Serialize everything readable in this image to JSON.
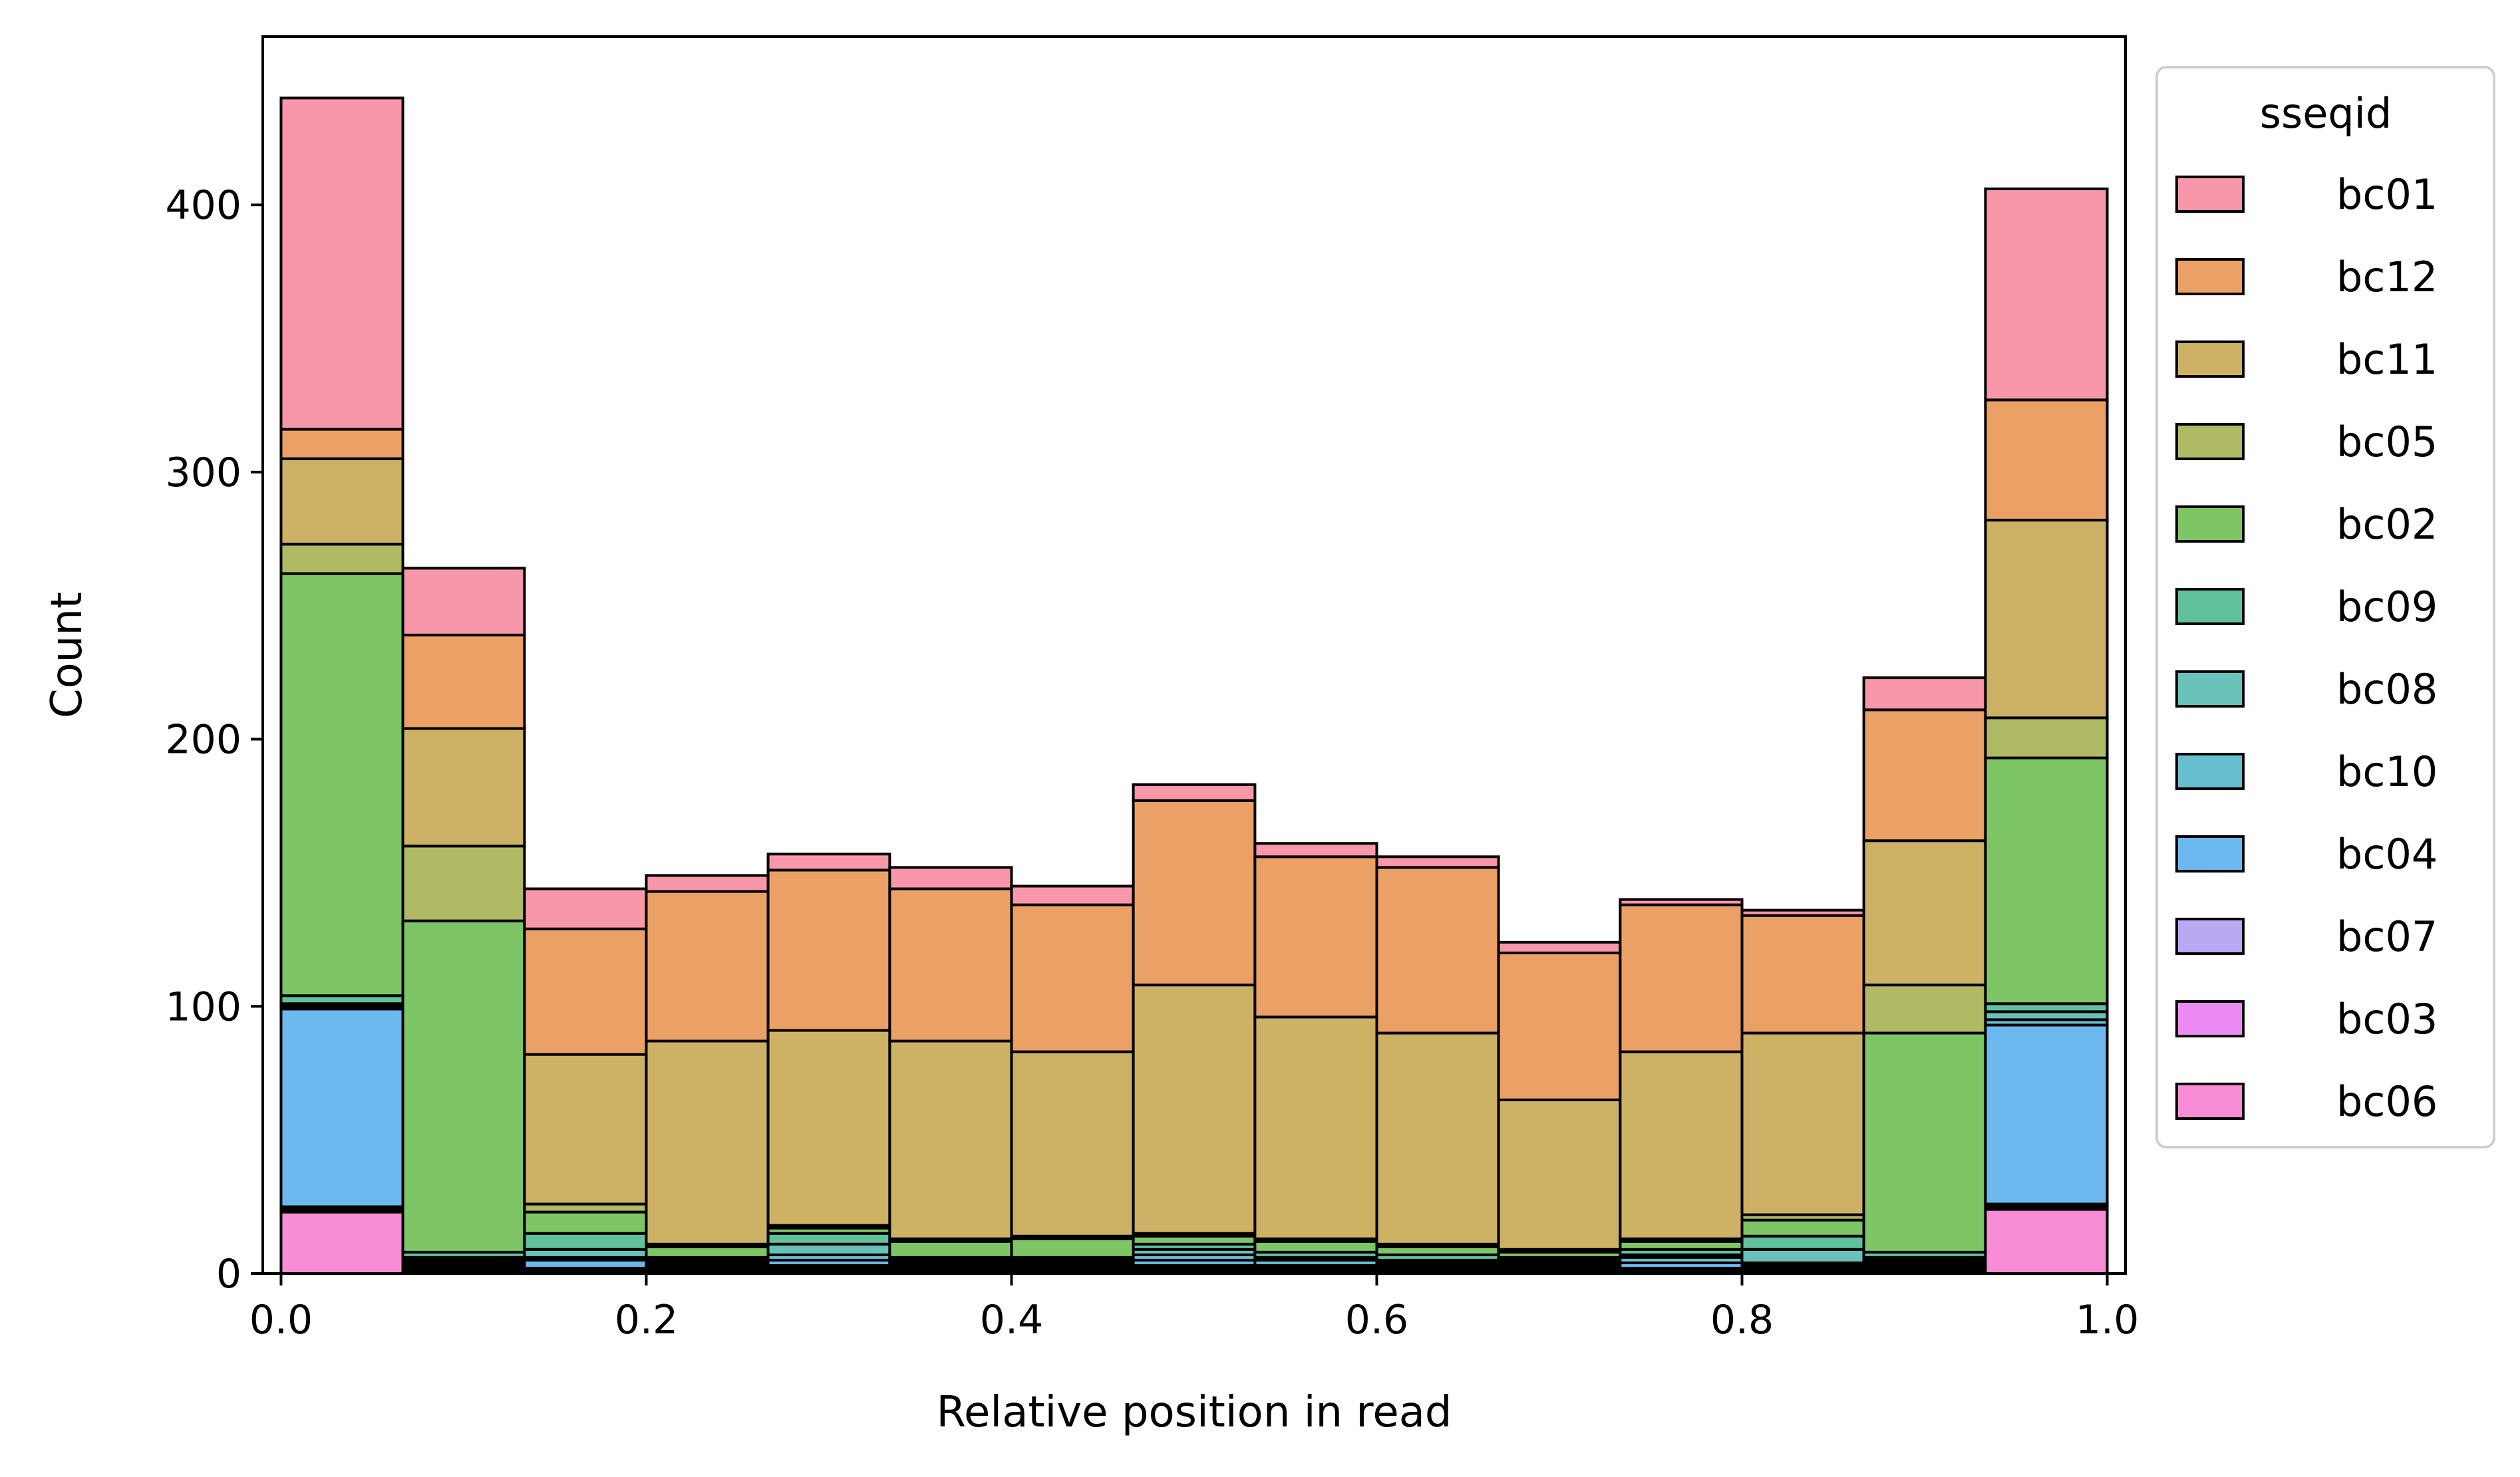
{
  "chart_data": {
    "type": "bar",
    "stacked": true,
    "title": "",
    "xlabel": "Relative position in read",
    "ylabel": "Count",
    "xlim": [
      -0.01,
      1.01
    ],
    "ylim": [
      0,
      463
    ],
    "xticks": [
      0.0,
      0.2,
      0.4,
      0.6,
      0.8,
      1.0
    ],
    "xtick_labels": [
      "0.0",
      "0.2",
      "0.4",
      "0.6",
      "0.8",
      "1.0"
    ],
    "yticks": [
      0,
      100,
      200,
      300,
      400
    ],
    "ytick_labels": [
      "0",
      "100",
      "200",
      "300",
      "400"
    ],
    "grid": false,
    "legend": {
      "title": "sseqid",
      "placement": "outside-right"
    },
    "bin_edges": [
      0.0,
      0.0667,
      0.1333,
      0.2,
      0.2667,
      0.3333,
      0.4,
      0.4667,
      0.5333,
      0.6,
      0.6667,
      0.7333,
      0.8,
      0.8667,
      0.9333,
      1.0
    ],
    "stack_order_bottom_to_top": [
      "bc06",
      "bc03",
      "bc07",
      "bc04",
      "bc10",
      "bc08",
      "bc09",
      "bc02",
      "bc05",
      "bc11",
      "bc12",
      "bc01"
    ],
    "series": [
      {
        "name": "bc01",
        "color": "#f897a9",
        "values": [
          124,
          25,
          15,
          6,
          6,
          8,
          7,
          6,
          5,
          4,
          4,
          2,
          2,
          12,
          79
        ]
      },
      {
        "name": "bc12",
        "color": "#eba165",
        "values": [
          11,
          35,
          47,
          56,
          60,
          57,
          55,
          69,
          60,
          62,
          55,
          55,
          44,
          49,
          45
        ]
      },
      {
        "name": "bc11",
        "color": "#cdb266",
        "values": [
          32,
          44,
          56,
          76,
          73,
          74,
          69,
          93,
          83,
          79,
          56,
          70,
          68,
          54,
          74
        ]
      },
      {
        "name": "bc05",
        "color": "#b0b964",
        "values": [
          11,
          28,
          3,
          1,
          1,
          1,
          1,
          1,
          1,
          1,
          1,
          1,
          2,
          18,
          15
        ]
      },
      {
        "name": "bc02",
        "color": "#7ec566",
        "values": [
          158,
          124,
          8,
          4,
          2,
          6,
          7,
          3,
          4,
          3,
          2,
          3,
          6,
          82,
          92
        ]
      },
      {
        "name": "bc09",
        "color": "#61c19c",
        "values": [
          3,
          2,
          6,
          1,
          4,
          1,
          1,
          2,
          2,
          2,
          1,
          2,
          5,
          2,
          3
        ]
      },
      {
        "name": "bc08",
        "color": "#68c2ba",
        "values": [
          1,
          1,
          3,
          1,
          4,
          1,
          1,
          2,
          1,
          1,
          1,
          1,
          5,
          1,
          3
        ]
      },
      {
        "name": "bc10",
        "color": "#68bfcf",
        "values": [
          1,
          1,
          1,
          1,
          2,
          1,
          1,
          2,
          2,
          1,
          1,
          2,
          1,
          1,
          2
        ]
      },
      {
        "name": "bc04",
        "color": "#6bb9ef",
        "values": [
          74,
          1,
          3,
          1,
          2,
          1,
          1,
          2,
          1,
          1,
          1,
          2,
          1,
          1,
          67
        ]
      },
      {
        "name": "bc07",
        "color": "#bba8f2",
        "values": [
          1,
          1,
          1,
          1,
          1,
          1,
          1,
          1,
          1,
          1,
          1,
          1,
          1,
          1,
          1
        ]
      },
      {
        "name": "bc03",
        "color": "#ec8cf3",
        "values": [
          1,
          1,
          1,
          1,
          1,
          1,
          1,
          1,
          1,
          1,
          1,
          1,
          1,
          1,
          1
        ]
      },
      {
        "name": "bc06",
        "color": "#f88cd6",
        "values": [
          23,
          1,
          0,
          0,
          1,
          0,
          0,
          1,
          0,
          0,
          0,
          0,
          0,
          1,
          24
        ]
      }
    ]
  }
}
